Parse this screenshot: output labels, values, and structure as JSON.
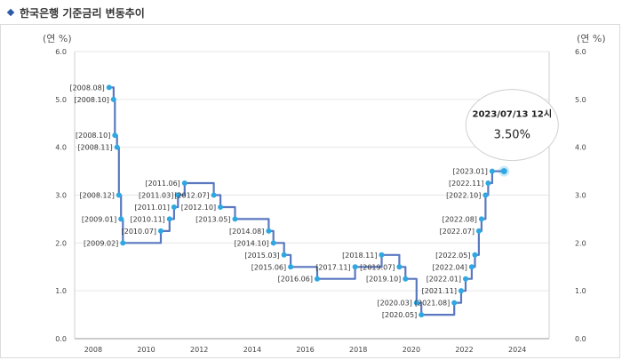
{
  "header": {
    "title": "한국은행 기준금리 변동추이"
  },
  "chart_data": {
    "type": "line",
    "title": "한국은행 기준금리 변동추이",
    "y_unit_left": "(연 %)",
    "y_unit_right": "(연 %)",
    "ylim": [
      0,
      6
    ],
    "xlim": [
      2007.3,
      2025.2
    ],
    "y_ticks": [
      "0.0",
      "1.0",
      "2.0",
      "3.0",
      "4.0",
      "5.0",
      "6.0"
    ],
    "x_ticks": [
      "2008",
      "2010",
      "2012",
      "2014",
      "2016",
      "2018",
      "2020",
      "2022",
      "2024"
    ],
    "grid": true,
    "series": [
      {
        "points": [
          {
            "label": "2008.08",
            "x": 2008.6,
            "y": 5.25
          },
          {
            "label": "2008.10",
            "x": 2008.77,
            "y": 5.0
          },
          {
            "label": "2008.10",
            "x": 2008.82,
            "y": 4.25
          },
          {
            "label": "2008.11",
            "x": 2008.9,
            "y": 4.0
          },
          {
            "label": "2008.12",
            "x": 2008.97,
            "y": 3.0
          },
          {
            "label": "2009.01",
            "x": 2009.05,
            "y": 2.5
          },
          {
            "label": "2009.02",
            "x": 2009.12,
            "y": 2.0
          },
          {
            "label": "2010.07",
            "x": 2010.55,
            "y": 2.25
          },
          {
            "label": "2010.11",
            "x": 2010.88,
            "y": 2.5
          },
          {
            "label": "2011.01",
            "x": 2011.05,
            "y": 2.75
          },
          {
            "label": "2011.03",
            "x": 2011.2,
            "y": 3.0
          },
          {
            "label": "2011.06",
            "x": 2011.45,
            "y": 3.25
          },
          {
            "label": "2012.07",
            "x": 2012.55,
            "y": 3.0
          },
          {
            "label": "2012.10",
            "x": 2012.8,
            "y": 2.75
          },
          {
            "label": "2013.05",
            "x": 2013.35,
            "y": 2.5
          },
          {
            "label": "2014.08",
            "x": 2014.62,
            "y": 2.25
          },
          {
            "label": "2014.10",
            "x": 2014.8,
            "y": 2.0
          },
          {
            "label": "2015.03",
            "x": 2015.2,
            "y": 1.75
          },
          {
            "label": "2015.06",
            "x": 2015.45,
            "y": 1.5
          },
          {
            "label": "2016.06",
            "x": 2016.45,
            "y": 1.25
          },
          {
            "label": "2017.11",
            "x": 2017.88,
            "y": 1.5
          },
          {
            "label": "2018.11",
            "x": 2018.88,
            "y": 1.75
          },
          {
            "label": "2019.07",
            "x": 2019.55,
            "y": 1.5
          },
          {
            "label": "2019.10",
            "x": 2019.78,
            "y": 1.25
          },
          {
            "label": "2020.03",
            "x": 2020.2,
            "y": 0.75
          },
          {
            "label": "2020.05",
            "x": 2020.38,
            "y": 0.5
          },
          {
            "label": "2021.08",
            "x": 2021.62,
            "y": 0.75
          },
          {
            "label": "2021.11",
            "x": 2021.88,
            "y": 1.0
          },
          {
            "label": "2022.01",
            "x": 2022.05,
            "y": 1.25
          },
          {
            "label": "2022.04",
            "x": 2022.28,
            "y": 1.5
          },
          {
            "label": "2022.05",
            "x": 2022.4,
            "y": 1.75
          },
          {
            "label": "2022.07",
            "x": 2022.55,
            "y": 2.25
          },
          {
            "label": "2022.08",
            "x": 2022.65,
            "y": 2.5
          },
          {
            "label": "2022.10",
            "x": 2022.8,
            "y": 3.0
          },
          {
            "label": "2022.11",
            "x": 2022.9,
            "y": 3.25
          },
          {
            "label": "2023.01",
            "x": 2023.05,
            "y": 3.5
          },
          {
            "label": "",
            "x": 2023.5,
            "y": 3.5
          }
        ]
      }
    ],
    "annotation": {
      "date": "2023/07/13 12시",
      "value": "3.50%"
    }
  }
}
